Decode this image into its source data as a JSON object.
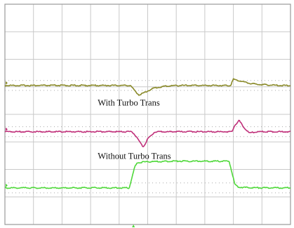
{
  "chart_data": {
    "type": "line",
    "grid": true,
    "grid_divisions": {
      "x": 10,
      "y": 8
    },
    "annotations": [
      {
        "text": "With Turbo Trans",
        "series": "olive-trace"
      },
      {
        "text": "Without Turbo Trans",
        "series": "magenta-trace"
      }
    ],
    "series": [
      {
        "id": "olive-trace",
        "color": "#8a8a2a",
        "baseline_div": 5.05,
        "x_div": [
          0,
          4.4,
          4.55,
          4.7,
          4.9,
          5.2,
          5.6,
          6.0,
          6.5,
          7.0,
          7.5,
          7.9,
          8.0,
          8.2,
          8.6,
          9.0,
          9.6,
          10
        ],
        "y_div": [
          5.05,
          5.05,
          4.85,
          4.7,
          4.8,
          4.95,
          5.02,
          5.05,
          5.05,
          5.05,
          5.05,
          5.05,
          5.28,
          5.22,
          5.12,
          5.08,
          5.05,
          5.05
        ]
      },
      {
        "id": "magenta-trace",
        "color": "#c0307a",
        "baseline_div": 3.37,
        "x_div": [
          0,
          4.45,
          4.6,
          4.75,
          4.85,
          5.0,
          5.25,
          5.6,
          6.0,
          7.5,
          7.95,
          8.05,
          8.2,
          8.35,
          8.55,
          8.8,
          9.2,
          10
        ],
        "y_div": [
          3.37,
          3.37,
          3.2,
          2.95,
          2.82,
          3.1,
          3.37,
          3.37,
          3.37,
          3.37,
          3.37,
          3.6,
          3.78,
          3.55,
          3.32,
          3.37,
          3.37,
          3.37
        ]
      },
      {
        "id": "green-trace",
        "color": "#4fd83a",
        "baseline_div": 1.33,
        "x_div": [
          0,
          4.35,
          4.45,
          4.55,
          4.65,
          5.0,
          6.0,
          7.0,
          7.85,
          7.95,
          8.05,
          8.2,
          9.0,
          10
        ],
        "y_div": [
          1.33,
          1.33,
          1.7,
          2.1,
          2.25,
          2.28,
          2.3,
          2.3,
          2.3,
          1.9,
          1.45,
          1.35,
          1.33,
          1.33
        ]
      }
    ]
  }
}
